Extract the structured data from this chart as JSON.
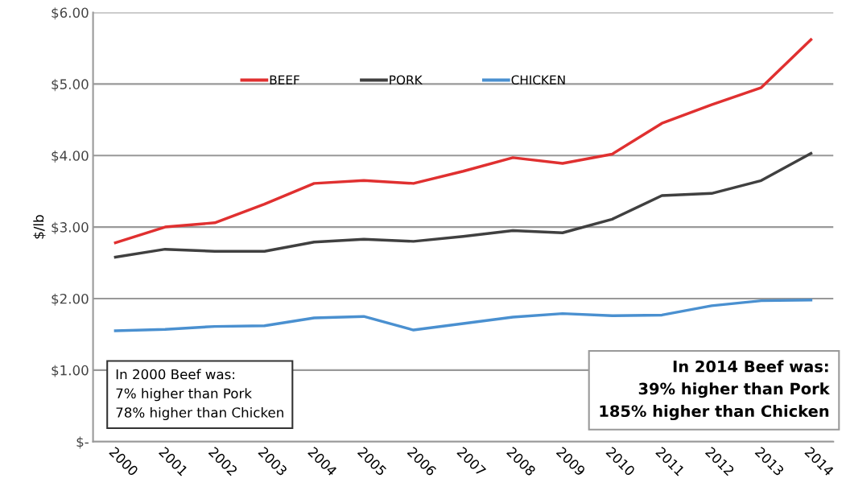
{
  "chart_data": {
    "type": "line",
    "ylabel": "$/lb",
    "categories": [
      "2000",
      "2001",
      "2002",
      "2003",
      "2004",
      "2005",
      "2006",
      "2007",
      "2008",
      "2009",
      "2010",
      "2011",
      "2012",
      "2013",
      "2014"
    ],
    "series": [
      {
        "name": "BEEF",
        "color": "#e03030",
        "values": [
          2.78,
          3.0,
          3.06,
          3.32,
          3.61,
          3.65,
          3.61,
          3.78,
          3.97,
          3.89,
          4.02,
          4.45,
          4.71,
          4.95,
          5.62
        ]
      },
      {
        "name": "PORK",
        "color": "#404040",
        "values": [
          2.58,
          2.69,
          2.66,
          2.66,
          2.79,
          2.83,
          2.8,
          2.87,
          2.95,
          2.92,
          3.11,
          3.44,
          3.47,
          3.65,
          4.03
        ]
      },
      {
        "name": "CHICKEN",
        "color": "#4a90d0",
        "values": [
          1.55,
          1.57,
          1.61,
          1.62,
          1.73,
          1.75,
          1.56,
          1.65,
          1.74,
          1.79,
          1.76,
          1.77,
          1.9,
          1.97,
          1.98
        ]
      }
    ],
    "ylim": [
      0,
      6
    ],
    "yticks": [
      {
        "value": 0,
        "label": "$-"
      },
      {
        "value": 1,
        "label": "$1.00"
      },
      {
        "value": 2,
        "label": "$2.00"
      },
      {
        "value": 3,
        "label": "$3.00"
      },
      {
        "value": 4,
        "label": "$4.00"
      },
      {
        "value": 5,
        "label": "$5.00"
      },
      {
        "value": 6,
        "label": "$6.00"
      }
    ],
    "grid": "y",
    "legend": "top",
    "marker": "none",
    "line_style": "solid",
    "annotations": [
      "In 2000 Beef was:\n7% higher than Pork\n78% higher than Chicken",
      "In 2014 Beef was:\n39% higher than Pork\n185% higher than Chicken"
    ]
  }
}
